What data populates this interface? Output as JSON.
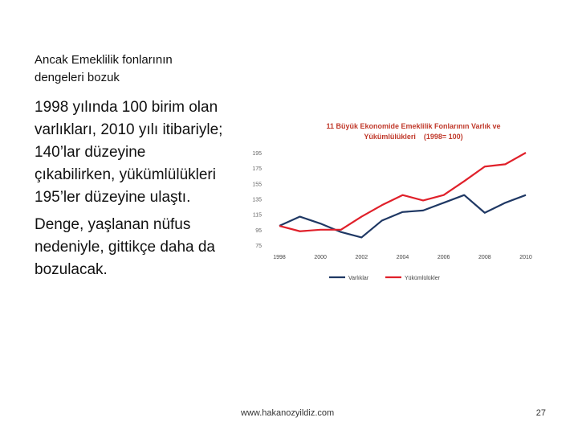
{
  "slide": {
    "heading_line1": "Ancak Emeklilik fonlarının",
    "heading_line2": "dengeleri bozuk",
    "paragraph1": "1998 yılında 100 birim olan varlıkları, 2010 yılı itibariyle; 140’lar düzeyine çıkabilirken, yükümlülükleri 195’ler düzeyine ulaştı.",
    "paragraph2": "Denge, yaşlanan nüfus nedeniyle, gittikçe daha da bozulacak.",
    "footer_url": "www.hakanozyildiz.com",
    "page_number": "27"
  },
  "chart_data": {
    "type": "line",
    "title_line1": "11 Büyük Ekonomide Emeklilik Fonlarının Varlık ve",
    "title_line2": "Yükümlülükleri",
    "title_note": "(1998= 100)",
    "title_color": "#c0392b",
    "x": [
      1998,
      1999,
      2000,
      2001,
      2002,
      2003,
      2004,
      2005,
      2006,
      2007,
      2008,
      2009,
      2010
    ],
    "x_tick_labels": [
      "1998",
      "2000",
      "2002",
      "2004",
      "2006",
      "2008",
      "2010"
    ],
    "x_tick_values": [
      1998,
      2000,
      2002,
      2004,
      2006,
      2008,
      2010
    ],
    "y_tick_values": [
      75,
      95,
      115,
      135,
      155,
      175,
      195
    ],
    "y_tick_labels": [
      "75",
      "95",
      "115",
      "135",
      "155",
      "175",
      "195"
    ],
    "ylim": [
      75,
      195
    ],
    "grid": false,
    "legend_position": "bottom",
    "series": [
      {
        "name": "Varlıklar",
        "color": "#1f3864",
        "values": [
          100,
          112,
          103,
          92,
          85,
          107,
          118,
          120,
          130,
          140,
          117,
          130,
          140
        ]
      },
      {
        "name": "Yükümlülükler",
        "color": "#e0202a",
        "values": [
          100,
          93,
          95,
          95,
          112,
          127,
          140,
          133,
          140,
          158,
          177,
          180,
          195
        ]
      }
    ]
  }
}
